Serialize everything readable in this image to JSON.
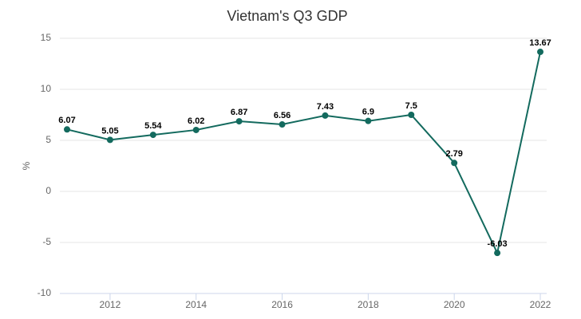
{
  "chart_data": {
    "type": "line",
    "title": "Vietnam's Q3 GDP",
    "y_label": "%",
    "x": [
      2011,
      2012,
      2013,
      2014,
      2015,
      2016,
      2017,
      2018,
      2019,
      2020,
      2021,
      2022
    ],
    "series": [
      {
        "name": "Q3 GDP",
        "color": "#136a5e",
        "values": [
          6.07,
          5.05,
          5.54,
          6.02,
          6.87,
          6.56,
          7.43,
          6.9,
          7.5,
          2.79,
          -6.03,
          13.67
        ]
      }
    ],
    "xlim": [
      2011,
      2022
    ],
    "xticks": [
      2012,
      2014,
      2016,
      2018,
      2020,
      2022
    ],
    "ylim": [
      -10,
      15
    ],
    "yticks": [
      -10,
      -5,
      0,
      5,
      10,
      15
    ],
    "grid": true
  }
}
